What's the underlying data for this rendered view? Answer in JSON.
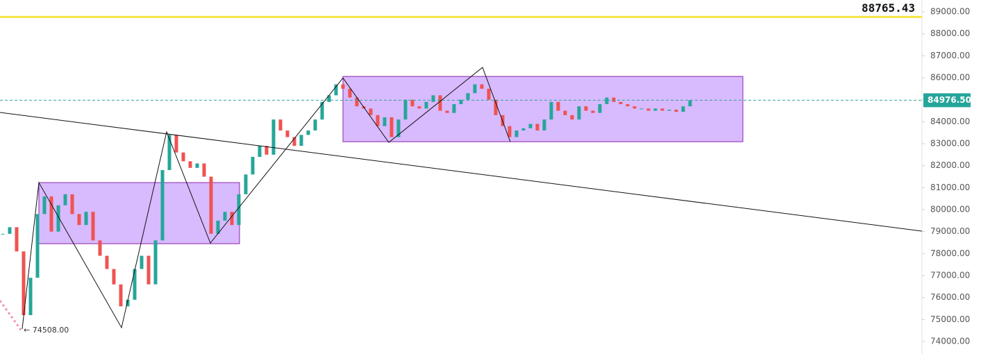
{
  "chart_data": {
    "type": "candlestick",
    "up_color": "#26a69a",
    "down_color": "#ef5350",
    "xlim": [
      0,
      132.8
    ],
    "ylim": [
      73432,
      89537
    ],
    "yticks": [
      {
        "value": 74000,
        "label": "74000.00"
      },
      {
        "value": 75000,
        "label": "75000.00"
      },
      {
        "value": 76000,
        "label": "76000.00"
      },
      {
        "value": 77000,
        "label": "77000.00"
      },
      {
        "value": 78000,
        "label": "78000.00"
      },
      {
        "value": 79000,
        "label": "79000.00"
      },
      {
        "value": 80000,
        "label": "80000.00"
      },
      {
        "value": 81000,
        "label": "81000.00"
      },
      {
        "value": 82000,
        "label": "82000.00"
      },
      {
        "value": 83000,
        "label": "83000.00"
      },
      {
        "value": 84000,
        "label": "84000.00"
      },
      {
        "value": 85000,
        "label": "85000.00"
      },
      {
        "value": 86000,
        "label": "86000.00"
      },
      {
        "value": 87000,
        "label": "87000.00"
      },
      {
        "value": 88000,
        "label": "88000.00"
      },
      {
        "value": 89000,
        "label": "89000.00"
      }
    ],
    "closes": [
      78900,
      79200,
      78100,
      75200,
      76900,
      79800,
      80600,
      79000,
      80200,
      80700,
      79800,
      79300,
      79900,
      78600,
      77900,
      77300,
      76600,
      75600,
      75900,
      77300,
      77900,
      76600,
      78600,
      81800,
      83400,
      82600,
      82200,
      81900,
      82100,
      81500,
      78900,
      79500,
      79900,
      79300,
      80700,
      81600,
      82400,
      82900,
      82500,
      84100,
      83600,
      83300,
      82900,
      83400,
      83600,
      84100,
      84900,
      85200,
      85700,
      85500,
      85100,
      84700,
      84600,
      84300,
      83800,
      84200,
      83300,
      84100,
      85000,
      84700,
      84600,
      84900,
      85200,
      84500,
      84400,
      84800,
      85000,
      85300,
      85700,
      85500,
      85000,
      84300,
      83800,
      83300,
      83600,
      83700,
      83900,
      83600,
      84100,
      84900,
      84500,
      84300,
      84100,
      84700,
      84500,
      84400,
      84800,
      85100,
      84900,
      84800,
      84700,
      84600,
      84600,
      84500,
      84600,
      84500,
      84550,
      84450,
      84700,
      84976.5
    ],
    "alert_line": {
      "value": 88765.43,
      "label": "88765.43",
      "color": "#f5e642"
    },
    "current_price": {
      "value": 84976.5,
      "label": "84976.50",
      "color": "#26a69a"
    },
    "low_marker": {
      "x": 3.2,
      "value": 74508,
      "label": "← 74508.00"
    },
    "drawings": {
      "trend_line": {
        "x": [
          0,
          132.8
        ],
        "y": [
          84422,
          79022
        ]
      },
      "zigzag": {
        "x": [
          3.2,
          5.6,
          17.5,
          24,
          30.3,
          49.4,
          56,
          69.5,
          73.5
        ],
        "y": [
          74570,
          81230,
          74630,
          83540,
          78480,
          85990,
          83060,
          86470,
          83090
        ]
      },
      "dotted": {
        "x": [
          0,
          3
        ],
        "y": [
          75860,
          74530
        ]
      },
      "boxes": [
        {
          "x": [
            5.6,
            34.5
          ],
          "y": [
            81230,
            78450
          ]
        },
        {
          "x": [
            49.4,
            107
          ],
          "y": [
            86060,
            83090
          ]
        }
      ]
    }
  }
}
